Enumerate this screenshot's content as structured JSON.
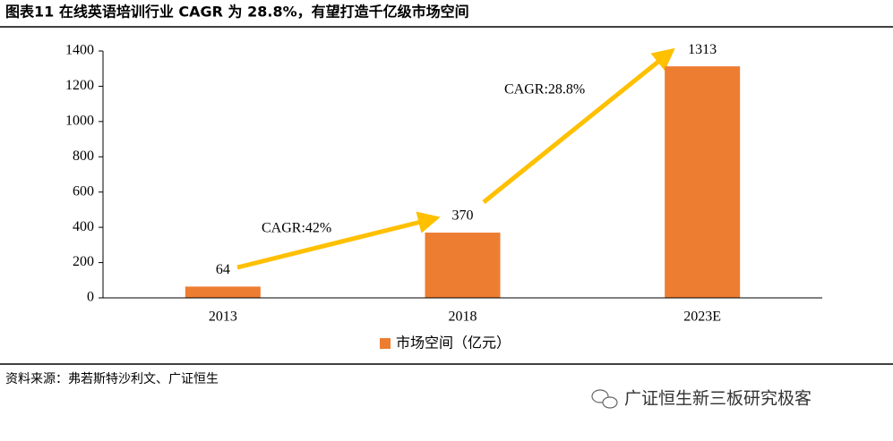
{
  "chart_data": {
    "type": "bar",
    "title": "图表11 在线英语培训行业 CAGR 为 28.8%，有望打造千亿级市场空间",
    "categories": [
      "2013",
      "2018",
      "2023E"
    ],
    "series": [
      {
        "name": "市场空间（亿元）",
        "color": "#ed7d31",
        "values": [
          64,
          370,
          1313
        ]
      }
    ],
    "ylim": [
      0,
      1400
    ],
    "yticks": [
      0,
      200,
      400,
      600,
      800,
      1000,
      1200,
      1400
    ],
    "annotations": [
      "CAGR:42%",
      "CAGR:28.8%"
    ]
  },
  "source": "资料来源：弗若斯特沙利文、广证恒生",
  "watermark": "广证恒生新三板研究极客"
}
